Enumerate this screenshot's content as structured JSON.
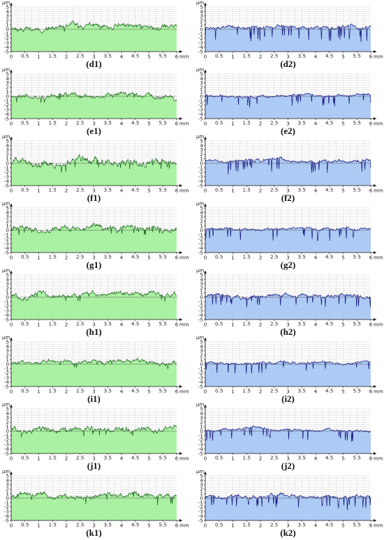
{
  "chart_data": {
    "type": "area",
    "x_unit": "mm",
    "y_unit": "µm",
    "xlim": [
      0,
      6
    ],
    "ylim": [
      -5,
      5
    ],
    "x_ticks": [
      "0",
      "0.5",
      "1",
      "1.5",
      "2",
      "2.5",
      "3",
      "3.5",
      "4",
      "4.5",
      "5",
      "5.5",
      "6"
    ],
    "y_ticks": [
      "5",
      "4",
      "3",
      "2",
      "1",
      "0",
      "-1",
      "-2",
      "-3",
      "-4",
      "-5"
    ],
    "grid": true,
    "colors": {
      "left_fill": "#a6f09e",
      "left_line": "#1b5e1b",
      "right_fill": "#a9c8f3",
      "right_line": "#10107a",
      "grid": "#d6d6d6",
      "axis": "#111111"
    },
    "panels": [
      {
        "label": "(d1)",
        "column": "left",
        "profile": {
          "mean": 0.6,
          "amplitude": 1.0,
          "valley_depth": 1.3,
          "valley_rate": 0.02,
          "seed": 11
        }
      },
      {
        "label": "(d2)",
        "column": "right",
        "profile": {
          "mean": 0.4,
          "amplitude": 0.6,
          "valley_depth": 3.2,
          "valley_rate": 0.07,
          "seed": 12
        }
      },
      {
        "label": "(e1)",
        "column": "left",
        "profile": {
          "mean": 0.0,
          "amplitude": 0.9,
          "valley_depth": 1.3,
          "valley_rate": 0.02,
          "seed": 21
        }
      },
      {
        "label": "(e2)",
        "column": "right",
        "profile": {
          "mean": 0.2,
          "amplitude": 0.5,
          "valley_depth": 2.6,
          "valley_rate": 0.05,
          "seed": 22
        }
      },
      {
        "label": "(f1)",
        "column": "left",
        "profile": {
          "mean": 0.2,
          "amplitude": 1.3,
          "valley_depth": 1.7,
          "valley_rate": 0.03,
          "seed": 31
        }
      },
      {
        "label": "(f2)",
        "column": "right",
        "profile": {
          "mean": 0.6,
          "amplitude": 0.6,
          "valley_depth": 2.8,
          "valley_rate": 0.06,
          "seed": 32
        }
      },
      {
        "label": "(g1)",
        "column": "left",
        "profile": {
          "mean": 0.5,
          "amplitude": 1.1,
          "valley_depth": 1.5,
          "valley_rate": 0.03,
          "seed": 41
        }
      },
      {
        "label": "(g2)",
        "column": "right",
        "profile": {
          "mean": 0.3,
          "amplitude": 0.5,
          "valley_depth": 2.6,
          "valley_rate": 0.06,
          "seed": 42
        }
      },
      {
        "label": "(h1)",
        "column": "left",
        "profile": {
          "mean": 0.5,
          "amplitude": 0.9,
          "valley_depth": 1.2,
          "valley_rate": 0.02,
          "seed": 51
        }
      },
      {
        "label": "(h2)",
        "column": "right",
        "profile": {
          "mean": 0.3,
          "amplitude": 0.7,
          "valley_depth": 2.4,
          "valley_rate": 0.05,
          "seed": 52
        }
      },
      {
        "label": "(i1)",
        "column": "left",
        "profile": {
          "mean": 0.3,
          "amplitude": 0.8,
          "valley_depth": 1.1,
          "valley_rate": 0.02,
          "seed": 61
        }
      },
      {
        "label": "(i2)",
        "column": "right",
        "profile": {
          "mean": 0.3,
          "amplitude": 0.5,
          "valley_depth": 2.6,
          "valley_rate": 0.05,
          "seed": 62
        }
      },
      {
        "label": "(j1)",
        "column": "left",
        "profile": {
          "mean": 0.4,
          "amplitude": 1.1,
          "valley_depth": 1.3,
          "valley_rate": 0.02,
          "seed": 71
        }
      },
      {
        "label": "(j2)",
        "column": "right",
        "profile": {
          "mean": 0.3,
          "amplitude": 0.5,
          "valley_depth": 2.4,
          "valley_rate": 0.05,
          "seed": 72
        }
      },
      {
        "label": "(k1)",
        "column": "left",
        "profile": {
          "mean": 0.5,
          "amplitude": 1.0,
          "valley_depth": 1.9,
          "valley_rate": 0.03,
          "seed": 81
        }
      },
      {
        "label": "(k2)",
        "column": "right",
        "profile": {
          "mean": 0.3,
          "amplitude": 0.6,
          "valley_depth": 2.8,
          "valley_rate": 0.06,
          "seed": 82
        }
      }
    ]
  }
}
